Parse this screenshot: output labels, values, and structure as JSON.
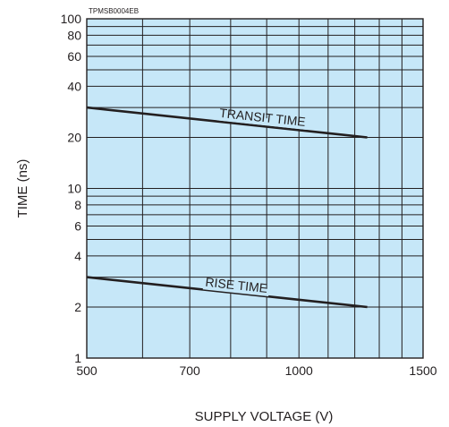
{
  "figure_code": "TPMSB0004EB",
  "colors": {
    "plot_bg": "#c6e7f8",
    "grid": "#231f20",
    "line": "#231f20"
  },
  "chart_data": {
    "type": "line",
    "title": "",
    "xlabel": "SUPPLY VOLTAGE (V)",
    "ylabel": "TIME (ns)",
    "xscale": "log",
    "yscale": "log",
    "xlim": [
      500,
      1500
    ],
    "ylim": [
      1,
      100
    ],
    "grid": true,
    "x_ticks": [
      500,
      700,
      1000,
      1500
    ],
    "x_tick_labels": [
      "500",
      "700",
      "1000",
      "1500"
    ],
    "y_ticks": [
      1,
      2,
      4,
      6,
      8,
      10,
      20,
      40,
      60,
      80,
      100
    ],
    "y_tick_labels": [
      "1",
      "2",
      "4",
      "6",
      "8",
      "10",
      "20",
      "40",
      "60",
      "80",
      "100"
    ],
    "series": [
      {
        "name": "TRANSIT TIME",
        "x": [
          500,
          1250
        ],
        "y": [
          30,
          20
        ]
      },
      {
        "name": "RISE TIME",
        "x": [
          500,
          1250
        ],
        "y": [
          3.0,
          2.0
        ]
      }
    ]
  }
}
